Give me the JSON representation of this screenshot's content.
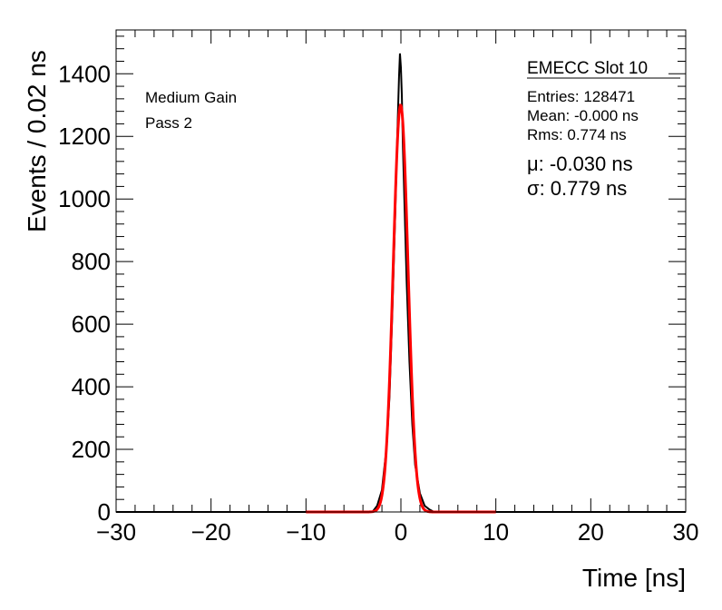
{
  "chart_data": {
    "type": "line",
    "xlabel": "Time [ns]",
    "ylabel": "Events / 0.02 ns",
    "xlim": [
      -30,
      30
    ],
    "ylim": [
      0,
      1540
    ],
    "x_ticks": [
      -30,
      -20,
      -10,
      0,
      10,
      20,
      30
    ],
    "x_tick_labels": [
      "−30",
      "−20",
      "−10",
      "0",
      "10",
      "20",
      "30"
    ],
    "y_ticks": [
      0,
      200,
      400,
      600,
      800,
      1000,
      1200,
      1400
    ],
    "y_tick_labels": [
      "0",
      "200",
      "400",
      "600",
      "800",
      "1000",
      "1200",
      "1400"
    ],
    "grid": false,
    "series": [
      {
        "kind": "histogram",
        "color": "#000000",
        "x": [
          -3.0,
          -2.5,
          -2.0,
          -1.5,
          -1.2,
          -0.9,
          -0.6,
          -0.4,
          -0.2,
          -0.1,
          0.0,
          0.1,
          0.2,
          0.4,
          0.6,
          0.9,
          1.2,
          1.5,
          2.0,
          2.5,
          3.0,
          3.5
        ],
        "y": [
          0,
          20,
          70,
          210,
          370,
          640,
          950,
          1180,
          1390,
          1465,
          1420,
          1330,
          1180,
          960,
          740,
          480,
          280,
          150,
          60,
          20,
          8,
          0
        ]
      },
      {
        "kind": "gaussian-fit",
        "color": "#ff0000",
        "mu": -0.03,
        "sigma": 0.779,
        "amplitude": 1300,
        "range": [
          -10,
          10
        ]
      }
    ],
    "annotations": {
      "gain": "Medium Gain",
      "pass": "Pass 2",
      "stats_title": "EMECC Slot 10",
      "entries": "Entries: 128471",
      "mean": "Mean: -0.000 ns",
      "rms": "Rms: 0.774 ns",
      "fit_mu": "μ: -0.030 ns",
      "fit_sigma": "σ: 0.779 ns"
    }
  }
}
